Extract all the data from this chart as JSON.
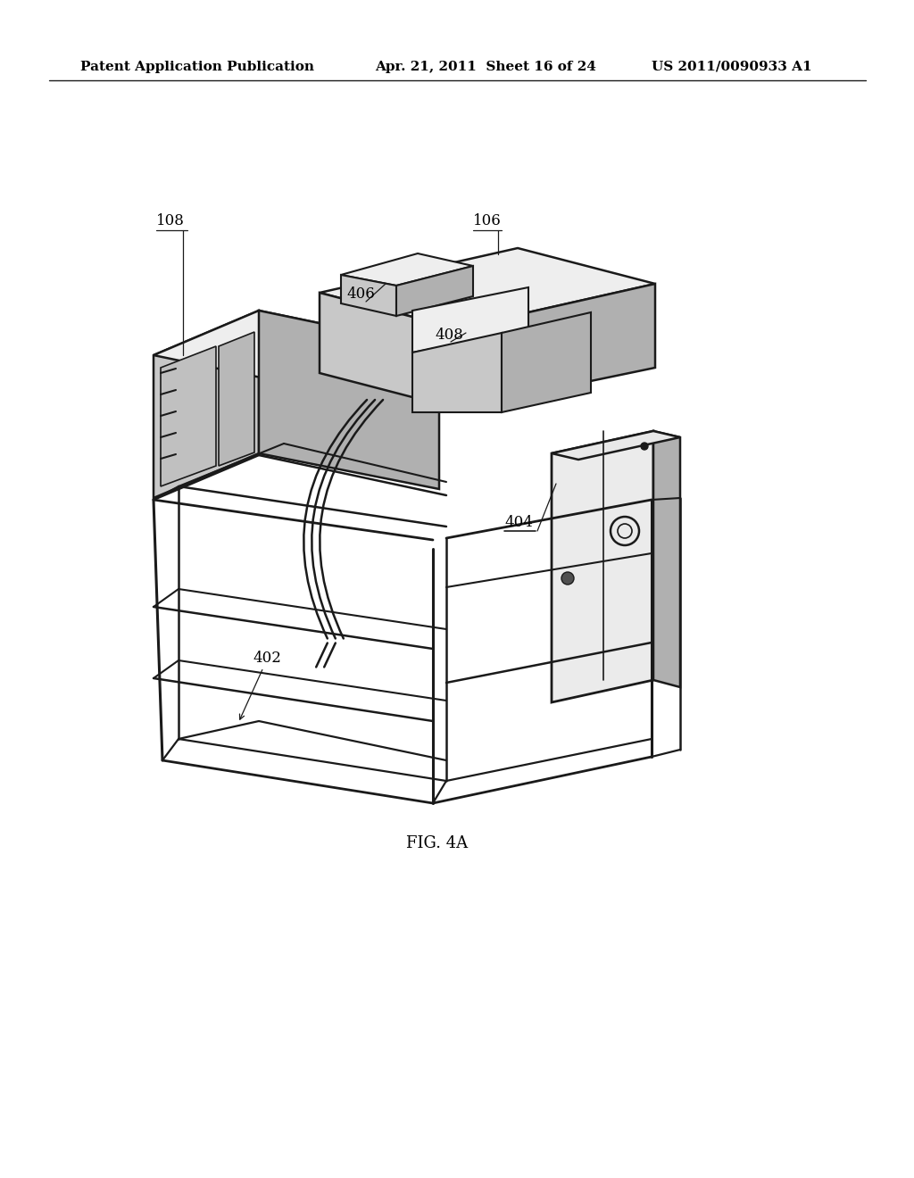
{
  "header_left": "Patent Application Publication",
  "header_mid": "Apr. 21, 2011  Sheet 16 of 24",
  "header_right": "US 2011/0090933 A1",
  "fig_label": "FIG. 4A",
  "background_color": "#ffffff",
  "line_color": "#000000",
  "label_108": "108",
  "label_106": "106",
  "label_406": "406",
  "label_408": "408",
  "label_404": "404",
  "label_402": "402",
  "c_top": "#e8e8e8",
  "c_left": "#c8c8c8",
  "c_right": "#b0b0b0",
  "c_off_white": "#eeeeee",
  "c_frame": "#1a1a1a"
}
